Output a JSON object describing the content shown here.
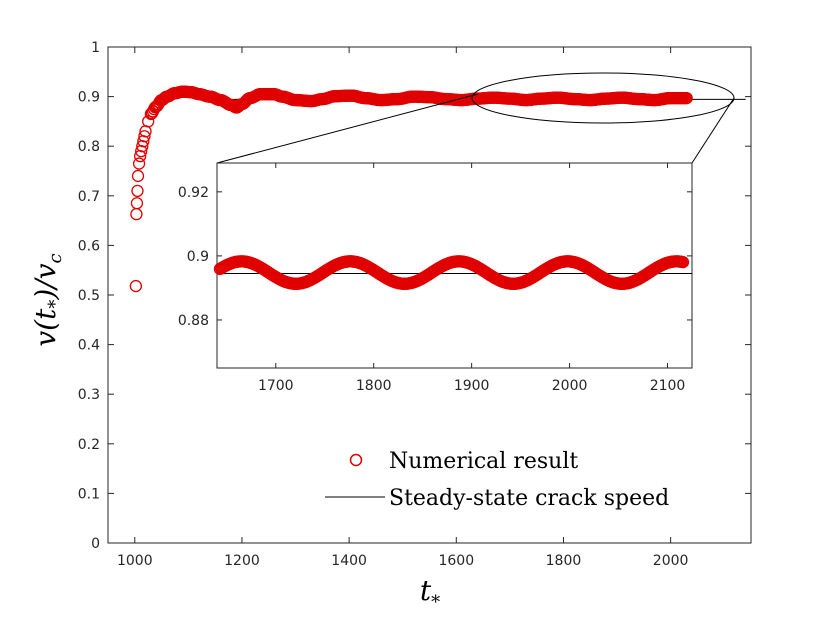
{
  "chart_data": [
    {
      "type": "scatter",
      "xlabel": "t_*",
      "ylabel": "v(t_*)/v_c",
      "xlim": [
        950,
        2150
      ],
      "ylim": [
        0,
        1
      ],
      "xticks": [
        1000,
        1200,
        1400,
        1600,
        1800,
        2000
      ],
      "yticks": [
        0,
        0.1,
        0.2,
        0.3,
        0.4,
        0.5,
        0.6,
        0.7,
        0.8,
        0.9,
        1
      ],
      "grid": false,
      "legend_position": "bottom-right",
      "series": [
        {
          "name": "Numerical result",
          "marker": "circle",
          "color": "#e00000",
          "x": [
            1002,
            1003,
            1004,
            1005,
            1006,
            1008,
            1010,
            1012,
            1014,
            1016,
            1018,
            1020,
            1025,
            1030,
            1040,
            1050,
            1060,
            1075,
            1090,
            1105,
            1120,
            1140,
            1160,
            1180,
            1190,
            1200,
            1215,
            1235,
            1260,
            1275,
            1300,
            1330,
            1350,
            1375,
            1405,
            1430,
            1460,
            1490,
            1520,
            1550,
            1580,
            1610,
            1640,
            1670,
            1700,
            1730,
            1760,
            1790,
            1820,
            1850,
            1880,
            1910,
            1940,
            1970,
            2000,
            2030
          ],
          "y": [
            0.518,
            0.663,
            0.685,
            0.71,
            0.74,
            0.765,
            0.78,
            0.79,
            0.8,
            0.81,
            0.82,
            0.83,
            0.85,
            0.865,
            0.88,
            0.893,
            0.9,
            0.907,
            0.91,
            0.909,
            0.905,
            0.9,
            0.893,
            0.883,
            0.878,
            0.885,
            0.897,
            0.905,
            0.905,
            0.9,
            0.893,
            0.891,
            0.895,
            0.901,
            0.902,
            0.897,
            0.893,
            0.895,
            0.9,
            0.899,
            0.895,
            0.893,
            0.896,
            0.898,
            0.896,
            0.893,
            0.896,
            0.898,
            0.895,
            0.893,
            0.896,
            0.898,
            0.895,
            0.893,
            0.897,
            0.897
          ]
        },
        {
          "name": "Steady-state crack speed",
          "type": "line",
          "color": "#000000",
          "x": [
            1120,
            2140
          ],
          "y": [
            0.8945,
            0.8945
          ]
        }
      ]
    },
    {
      "type": "scatter",
      "inset": true,
      "xlim": [
        1640,
        2125
      ],
      "ylim": [
        0.865,
        0.929
      ],
      "xticks": [
        1700,
        1800,
        1900,
        2000,
        2100
      ],
      "yticks": [
        0.88,
        0.9,
        0.92
      ],
      "ytick_labels": [
        "0.88",
        "0.9",
        "0.92"
      ],
      "series": [
        {
          "name": "Numerical result",
          "marker": "circle",
          "color": "#e00000",
          "wave": {
            "mean": 0.8948,
            "amplitude": 0.0035,
            "period": 111,
            "phase_peak_at": 1665,
            "x_start": 1643,
            "x_end": 2117
          }
        },
        {
          "name": "Steady-state crack speed",
          "type": "line",
          "color": "#000000",
          "x": [
            1640,
            2125
          ],
          "y": [
            0.8945,
            0.8945
          ]
        }
      ]
    }
  ],
  "legend": [
    {
      "label": "Numerical result"
    },
    {
      "label": "Steady-state crack speed"
    }
  ]
}
